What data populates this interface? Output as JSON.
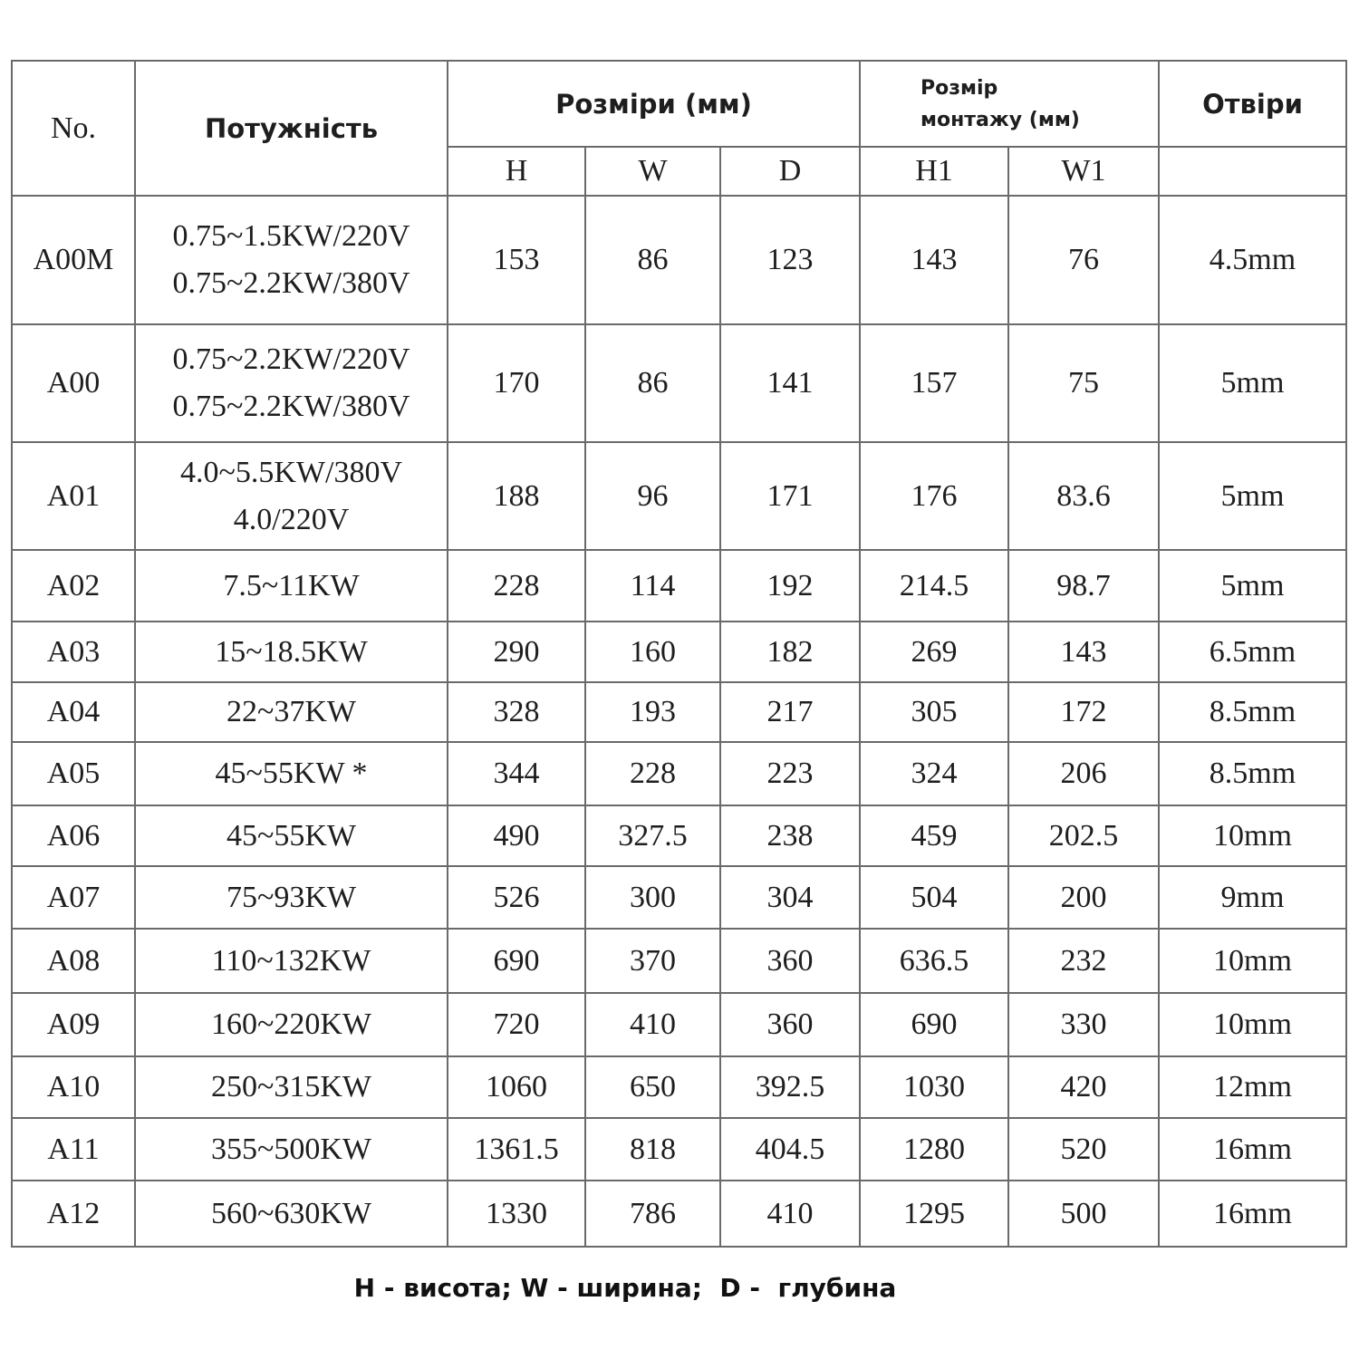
{
  "header": {
    "no": "No.",
    "power": "Потужність",
    "dimensions": "Розміри (мм)",
    "mounting_line1": "Розмір",
    "mounting_line2": "монтажу (мм)",
    "holes": "Отвіри",
    "sub": [
      "H",
      "W",
      "D",
      "H1",
      "W1"
    ]
  },
  "rows": [
    {
      "no": "A00M",
      "power": [
        "0.75~1.5KW/220V",
        "0.75~2.2KW/380V"
      ],
      "h": "153",
      "w": "86",
      "d": "123",
      "h1": "143",
      "w1": "76",
      "hole": "4.5mm"
    },
    {
      "no": "A00",
      "power": [
        "0.75~2.2KW/220V",
        "0.75~2.2KW/380V"
      ],
      "h": "170",
      "w": "86",
      "d": "141",
      "h1": "157",
      "w1": "75",
      "hole": "5mm"
    },
    {
      "no": "A01",
      "power": [
        "4.0~5.5KW/380V",
        "4.0/220V"
      ],
      "h": "188",
      "w": "96",
      "d": "171",
      "h1": "176",
      "w1": "83.6",
      "hole": "5mm"
    },
    {
      "no": "A02",
      "power": [
        "7.5~11KW"
      ],
      "h": "228",
      "w": "114",
      "d": "192",
      "h1": "214.5",
      "w1": "98.7",
      "hole": "5mm"
    },
    {
      "no": "A03",
      "power": [
        "15~18.5KW"
      ],
      "h": "290",
      "w": "160",
      "d": "182",
      "h1": "269",
      "w1": "143",
      "hole": "6.5mm"
    },
    {
      "no": "A04",
      "power": [
        "22~37KW"
      ],
      "h": "328",
      "w": "193",
      "d": "217",
      "h1": "305",
      "w1": "172",
      "hole": "8.5mm"
    },
    {
      "no": "A05",
      "power": [
        "45~55KW *"
      ],
      "h": "344",
      "w": "228",
      "d": "223",
      "h1": "324",
      "w1": "206",
      "hole": "8.5mm"
    },
    {
      "no": "A06",
      "power": [
        "45~55KW"
      ],
      "h": "490",
      "w": "327.5",
      "d": "238",
      "h1": "459",
      "w1": "202.5",
      "hole": "10mm"
    },
    {
      "no": "A07",
      "power": [
        "75~93KW"
      ],
      "h": "526",
      "w": "300",
      "d": "304",
      "h1": "504",
      "w1": "200",
      "hole": "9mm"
    },
    {
      "no": "A08",
      "power": [
        "110~132KW"
      ],
      "h": "690",
      "w": "370",
      "d": "360",
      "h1": "636.5",
      "w1": "232",
      "hole": "10mm"
    },
    {
      "no": "A09",
      "power": [
        "160~220KW"
      ],
      "h": "720",
      "w": "410",
      "d": "360",
      "h1": "690",
      "w1": "330",
      "hole": "10mm"
    },
    {
      "no": "A10",
      "power": [
        "250~315KW"
      ],
      "h": "1060",
      "w": "650",
      "d": "392.5",
      "h1": "1030",
      "w1": "420",
      "hole": "12mm"
    },
    {
      "no": "A11",
      "power": [
        "355~500KW"
      ],
      "h": "1361.5",
      "w": "818",
      "d": "404.5",
      "h1": "1280",
      "w1": "520",
      "hole": "16mm"
    },
    {
      "no": "A12",
      "power": [
        "560~630KW"
      ],
      "h": "1330",
      "w": "786",
      "d": "410",
      "h1": "1295",
      "w1": "500",
      "hole": "16mm"
    }
  ],
  "legend": "H - висота; W - ширина;  D -  глубина"
}
